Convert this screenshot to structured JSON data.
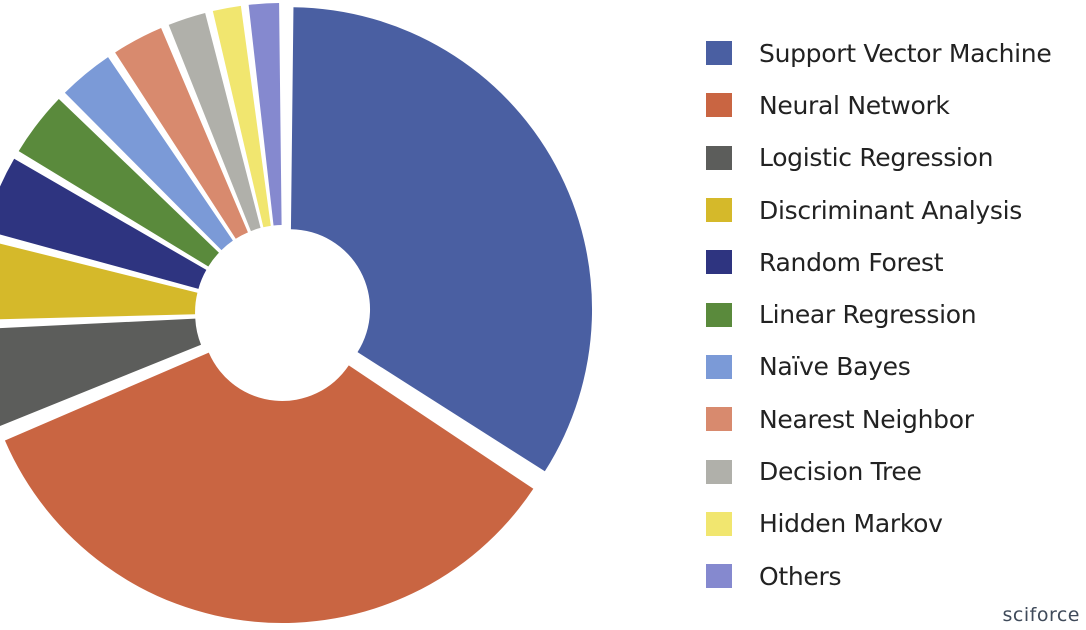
{
  "chart_data": {
    "type": "pie",
    "style": "donut",
    "exploded_slices": [
      "Support Vector Machine",
      "Neural Network",
      "Logistic Regression",
      "Discriminant Analysis",
      "Random Forest",
      "Linear Regression",
      "Naïve Bayes",
      "Nearest Neighbor",
      "Decision Tree",
      "Hidden Markov",
      "Others"
    ],
    "categories": [
      "Support Vector Machine",
      "Neural Network",
      "Logistic Regression",
      "Discriminant Analysis",
      "Random Forest",
      "Linear Regression",
      "Naïve Bayes",
      "Nearest Neighbor",
      "Decision Tree",
      "Hidden Markov",
      "Others"
    ],
    "values": [
      33,
      33.3,
      5.5,
      4.5,
      4.3,
      3.7,
      3.2,
      3,
      2.3,
      1.8,
      1.9
    ],
    "colors": [
      "#4a5fa2",
      "#c96542",
      "#5c5d5b",
      "#d5b92a",
      "#2e3480",
      "#5a8a3c",
      "#7b9ad7",
      "#d88a6e",
      "#b0b0aa",
      "#f1e66f",
      "#8589cf"
    ],
    "legend_position": "right"
  },
  "legend": {
    "items": [
      {
        "label": "Support Vector Machine",
        "color": "#4a5fa2"
      },
      {
        "label": "Neural Network",
        "color": "#c96542"
      },
      {
        "label": "Logistic Regression",
        "color": "#5c5d5b"
      },
      {
        "label": "Discriminant Analysis",
        "color": "#d5b92a"
      },
      {
        "label": "Random Forest",
        "color": "#2e3480"
      },
      {
        "label": "Linear Regression",
        "color": "#5a8a3c"
      },
      {
        "label": "Naïve Bayes",
        "color": "#7b9ad7"
      },
      {
        "label": "Nearest Neighbor",
        "color": "#d88a6e"
      },
      {
        "label": "Decision Tree",
        "color": "#b0b0aa"
      },
      {
        "label": "Hidden Markov",
        "color": "#f1e66f"
      },
      {
        "label": "Others",
        "color": "#8589cf"
      }
    ]
  },
  "brand": {
    "text": "sciforce"
  }
}
